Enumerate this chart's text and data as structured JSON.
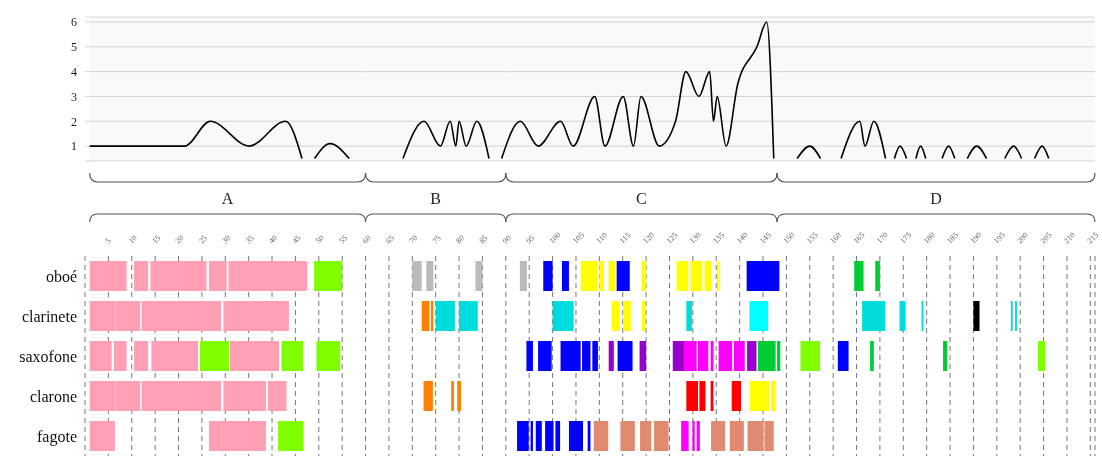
{
  "chart_data": [
    {
      "type": "line",
      "color": "#000000",
      "marker": "none",
      "grid": "y",
      "tick_labels": "y",
      "xlim": [
        0,
        216
      ],
      "ylim": [
        0.4,
        6.2
      ],
      "yticks": [
        1,
        2,
        3,
        4,
        5,
        6
      ],
      "x": [
        1,
        21.3,
        26.8,
        35.1,
        42.9,
        46.4,
        47.8,
        49.1,
        52.4,
        56.5,
        62,
        68,
        72.5,
        76,
        78.1,
        79.3,
        80,
        81.5,
        83.8,
        86.4,
        87.8,
        89.1,
        93.1,
        96.9,
        101.7,
        104.4,
        109,
        111.2,
        115.1,
        117.3,
        118.9,
        122.8,
        126.3,
        128.5,
        131.3,
        133.6,
        134.4,
        135.2,
        137.1,
        139.6,
        143.7,
        145.8,
        147.3,
        150,
        152.3,
        155,
        157.3,
        159.5,
        161.7,
        165.7,
        166.8,
        168.7,
        171.2,
        172.2,
        173.1,
        174.3,
        175.7,
        176.7,
        177.7,
        178.7,
        179.8,
        181.5,
        183.3,
        184.7,
        186,
        187.3,
        188.7,
        190.7,
        192.8,
        194.7,
        196.7,
        198.6,
        200.3,
        201.7,
        203.1,
        204.7,
        206.1
      ],
      "values": [
        1,
        1,
        2,
        1,
        2,
        0.5,
        null,
        0.5,
        1.1,
        0.5,
        null,
        0.5,
        2,
        1,
        2,
        1,
        2,
        1,
        2,
        0.5,
        null,
        0.5,
        2,
        1,
        2,
        1,
        3,
        1,
        3,
        1,
        3,
        1,
        2,
        4,
        3,
        4,
        2,
        3,
        1,
        3.5,
        5,
        6,
        0.5,
        null,
        0.5,
        1,
        0.5,
        null,
        0.5,
        2,
        1,
        2,
        0.5,
        null,
        0.5,
        1,
        0.5,
        null,
        0.5,
        1,
        0.5,
        null,
        0.5,
        1,
        0.5,
        null,
        0.5,
        1,
        0.5,
        null,
        0.5,
        1,
        0.5,
        null,
        0.5,
        1,
        0.5
      ],
      "bands": [
        {
          "axis": "x",
          "from": 1,
          "to": 60,
          "label": "A"
        },
        {
          "axis": "x",
          "from": 60,
          "to": 90,
          "label": "B"
        },
        {
          "axis": "x",
          "from": 90,
          "to": 148,
          "label": "C"
        },
        {
          "axis": "x",
          "from": 148,
          "to": 216,
          "label": "D"
        }
      ]
    },
    {
      "type": "bar",
      "orientation": "horizontal",
      "grid": "x",
      "xlim": [
        0,
        216
      ],
      "xticks": [
        5,
        10,
        15,
        20,
        25,
        30,
        35,
        40,
        45,
        50,
        55,
        60,
        65,
        70,
        75,
        80,
        85,
        90,
        95,
        100,
        105,
        110,
        115,
        120,
        125,
        130,
        135,
        140,
        145,
        150,
        155,
        160,
        165,
        170,
        175,
        180,
        185,
        190,
        195,
        200,
        205,
        210,
        215
      ],
      "categories": [
        "oboé",
        "clarinete",
        "saxofone",
        "clarone",
        "fagote"
      ],
      "series": [
        {
          "base": [
            1,
            1,
            1,
            1,
            1
          ],
          "values": [
            7.9,
            5.4,
            4.7,
            5.4,
            5.4
          ],
          "colors": [
            "#ffa0b4",
            "#ffa0b4",
            "#ffa0b4",
            "#ffa0b4",
            "#ffa0b4"
          ]
        },
        {
          "base": [
            10.5,
            6.5,
            6.2,
            6.5,
            26.5
          ],
          "values": [
            3,
            5.3,
            2.7,
            5.3,
            12.2
          ],
          "colors": [
            "#ffa0b4",
            "#ffa0b4",
            "#ffa0b4",
            "#ffa0b4",
            "#ffa0b4"
          ]
        },
        {
          "base": [
            14,
            12.1,
            10.5,
            12.1,
            41.3
          ],
          "values": [
            12,
            17,
            3,
            17,
            5.4
          ],
          "colors": [
            "#ffa0b4",
            "#ffa0b4",
            "#ffa0b4",
            "#ffa0b4",
            "#7fff00"
          ]
        },
        {
          "base": [
            26.5,
            29.6,
            14.2,
            29.6,
            92.4
          ],
          "values": [
            3.8,
            14,
            10,
            9.1,
            2.5
          ],
          "colors": [
            "#ffa0b4",
            "#ffa0b4",
            "#ffa0b4",
            "#ffa0b4",
            "#0000ff"
          ]
        },
        {
          "base": [
            30.7,
            72,
            24.6,
            39.1,
            95.3
          ],
          "values": [
            16.8,
            1.7,
            6.2,
            4,
            0.5
          ],
          "colors": [
            "#ffa0b4",
            "#ff8000",
            "#7fff00",
            "#ffa0b4",
            "#0000ff"
          ]
        },
        {
          "base": [
            49,
            74,
            31,
            72.4,
            96.4
          ],
          "values": [
            6,
            0.5,
            10.5,
            2,
            1.3
          ],
          "colors": [
            "#7fff00",
            "#ff8000",
            "#ffa0b4",
            "#ff8000",
            "#0000ff"
          ]
        },
        {
          "base": [
            70,
            75,
            42,
            78.3,
            98.4
          ],
          "values": [
            2,
            4.1,
            4.6,
            0.6,
            1.8
          ],
          "colors": [
            "#bbbbbb",
            "#00dcdc",
            "#7fff00",
            "#ff8000",
            "#0000ff"
          ]
        },
        {
          "base": [
            73,
            80,
            49.5,
            79.6,
            100.6
          ],
          "values": [
            1.5,
            4,
            5.1,
            0.8,
            1
          ],
          "colors": [
            "#bbbbbb",
            "#00dcdc",
            "#7fff00",
            "#ff8000",
            "#0000ff"
          ]
        },
        {
          "base": [
            83.5,
            100,
            94.4,
            128.6,
            103.5
          ],
          "values": [
            1.5,
            4.5,
            1.4,
            2.5,
            3
          ],
          "colors": [
            "#bbbbbb",
            "#00dcdc",
            "#0000ff",
            "#ff0000",
            "#0000ff"
          ]
        },
        {
          "base": [
            93,
            112.7,
            96.9,
            131.4,
            107.5
          ],
          "values": [
            1.5,
            1.5,
            2.9,
            1.3,
            0.6
          ],
          "colors": [
            "#bbbbbb",
            "#ffff00",
            "#0000ff",
            "#ff0000",
            "#0000ff"
          ]
        },
        {
          "base": [
            98,
            115.1,
            101.7,
            133.8,
            108.8
          ],
          "values": [
            2,
            1.6,
            4.3,
            0.6,
            3.1
          ],
          "colors": [
            "#0000ff",
            "#ffff00",
            "#0000ff",
            "#ff0000",
            "#e08a70"
          ]
        },
        {
          "base": [
            102,
            119.1,
            106.3,
            138.3,
            114.5
          ],
          "values": [
            1.5,
            0.7,
            1.8,
            2,
            3.1
          ],
          "colors": [
            "#0000ff",
            "#ffff00",
            "#0000ff",
            "#ff0000",
            "#e08a70"
          ]
        },
        {
          "base": [
            106,
            128.6,
            108.5,
            142.2,
            118.7
          ],
          "values": [
            3.5,
            1.2,
            1.2,
            3.2,
            2.4
          ],
          "colors": [
            "#ffff00",
            "#00dcdc",
            "#0000ff",
            "#ffff00",
            "#e08a70"
          ]
        },
        {
          "base": [
            110,
            142.1,
            112,
            145.6,
            121.7
          ],
          "values": [
            1,
            4,
            1.1,
            0.7,
            3.1
          ],
          "colors": [
            "#ffff00",
            "#00ffff",
            "#9900cc",
            "#ffff00",
            "#e08a70"
          ]
        },
        {
          "base": [
            112,
            166.2,
            113.9,
            146.7,
            127.5
          ],
          "values": [
            1.5,
            4.9,
            3.2,
            1,
            1.6
          ],
          "colors": [
            "#ffff00",
            "#00dcdc",
            "#0000ff",
            "#ffff00",
            "#ff00ff"
          ]
        },
        {
          "base": [
            113.7,
            174.2,
            118.6,
            null,
            129.9
          ],
          "values": [
            2.8,
            1.3,
            1.4,
            null,
            0.5
          ],
          "colors": [
            "#0000ff",
            "#00dcdc",
            "#9900cc",
            null,
            "#ff00ff"
          ]
        },
        {
          "base": [
            119,
            178.9,
            125.7,
            null,
            130.8
          ],
          "values": [
            1,
            0.4,
            2.4,
            null,
            0.7
          ],
          "colors": [
            "#ffff00",
            "#00dcdc",
            "#9900cc",
            null,
            "#ff00ff"
          ]
        },
        {
          "base": [
            126.5,
            190,
            128.1,
            null,
            133.9
          ],
          "values": [
            2.5,
            1.3,
            2.7,
            null,
            3
          ],
          "colors": [
            "#ffff00",
            "#000000",
            "#ff00ff",
            null,
            "#e08a70"
          ]
        },
        {
          "base": [
            129.5,
            198,
            131.1,
            null,
            137.9
          ],
          "values": [
            2.5,
            0.4,
            2.2,
            null,
            3
          ],
          "colors": [
            "#ffff00",
            "#00dcdc",
            "#ff00ff",
            null,
            "#e08a70"
          ]
        },
        {
          "base": [
            132.5,
            198.9,
            133.8,
            null,
            141.7
          ],
          "values": [
            1.5,
            0.4,
            0.6,
            null,
            3.4
          ],
          "colors": [
            "#ffff00",
            "#00dcdc",
            "#ff00ff",
            null,
            "#e08a70"
          ]
        },
        {
          "base": [
            135.2,
            null,
            135.5,
            null,
            145.3
          ],
          "values": [
            0.5,
            null,
            2.9,
            null,
            2
          ],
          "colors": [
            "#ffff00",
            null,
            "#ff00ff",
            null,
            "#e08a70"
          ]
        },
        {
          "base": [
            141.5,
            null,
            138.8,
            null,
            null
          ],
          "values": [
            7,
            null,
            2.3,
            null,
            null
          ],
          "colors": [
            "#0000ff",
            null,
            "#ff00ff",
            null,
            null
          ]
        },
        {
          "base": [
            164.5,
            null,
            141.6,
            null,
            null
          ],
          "values": [
            2,
            null,
            2,
            null,
            null
          ],
          "colors": [
            "#00cc33",
            null,
            "#9900cc",
            null,
            null
          ]
        },
        {
          "base": [
            169,
            null,
            143.9,
            null,
            null
          ],
          "values": [
            1,
            null,
            3.8,
            null,
            null
          ],
          "colors": [
            "#00cc33",
            null,
            "#00cc33",
            null,
            null
          ]
        },
        {
          "base": [
            null,
            null,
            148,
            null,
            null
          ],
          "values": [
            null,
            null,
            0.7,
            null,
            null
          ],
          "colors": [
            null,
            null,
            "#00cc33",
            null,
            null
          ]
        },
        {
          "base": [
            null,
            null,
            153,
            null,
            null
          ],
          "values": [
            null,
            null,
            4.2,
            null,
            null
          ],
          "colors": [
            null,
            null,
            "#7fff00",
            null,
            null
          ]
        },
        {
          "base": [
            null,
            null,
            161,
            null,
            null
          ],
          "values": [
            null,
            null,
            2.3,
            null,
            null
          ],
          "colors": [
            null,
            null,
            "#0000ff",
            null,
            null
          ]
        },
        {
          "base": [
            null,
            null,
            167.9,
            null,
            null
          ],
          "values": [
            null,
            null,
            0.8,
            null,
            null
          ],
          "colors": [
            null,
            null,
            "#00cc33",
            null,
            null
          ]
        },
        {
          "base": [
            null,
            null,
            183.5,
            null,
            null
          ],
          "values": [
            null,
            null,
            0.9,
            null,
            null
          ],
          "colors": [
            null,
            null,
            "#00cc33",
            null,
            null
          ]
        },
        {
          "base": [
            null,
            null,
            203.8,
            null,
            null
          ],
          "values": [
            null,
            null,
            1.5,
            null,
            null
          ],
          "colors": [
            null,
            null,
            "#7fff00",
            null,
            null
          ]
        }
      ]
    }
  ]
}
